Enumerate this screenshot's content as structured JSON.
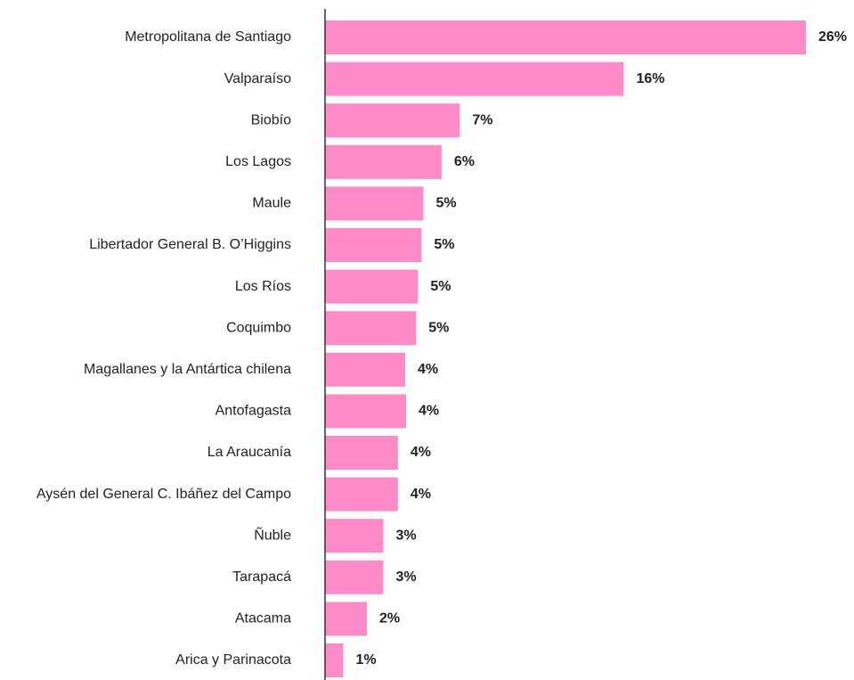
{
  "chart_data": {
    "type": "barh",
    "color": "#ff8ac8",
    "categories": [
      "Metropolitana de Santiago",
      "Valparaíso",
      "Biobío",
      "Los Lagos",
      "Maule",
      "Libertador General B. O’Higgins",
      "Los Ríos",
      "Coquimbo",
      "Magallanes y la Antártica chilena",
      "Antofagasta",
      "La Araucanía",
      "Aysén del General C. Ibáñez del Campo",
      "Ñuble",
      "Tarapacá",
      "Atacama",
      "Arica y Parinacota"
    ],
    "values": [
      26.4,
      16.4,
      7.4,
      6.4,
      5.4,
      5.3,
      5.1,
      5.0,
      4.4,
      4.45,
      4.0,
      4.0,
      3.2,
      3.2,
      2.3,
      1.0
    ],
    "value_labels": [
      "26%",
      "16%",
      "7%",
      "6%",
      "5%",
      "5%",
      "5%",
      "5%",
      "4%",
      "4%",
      "4%",
      "4%",
      "3%",
      "3%",
      "2%",
      "1%"
    ]
  }
}
